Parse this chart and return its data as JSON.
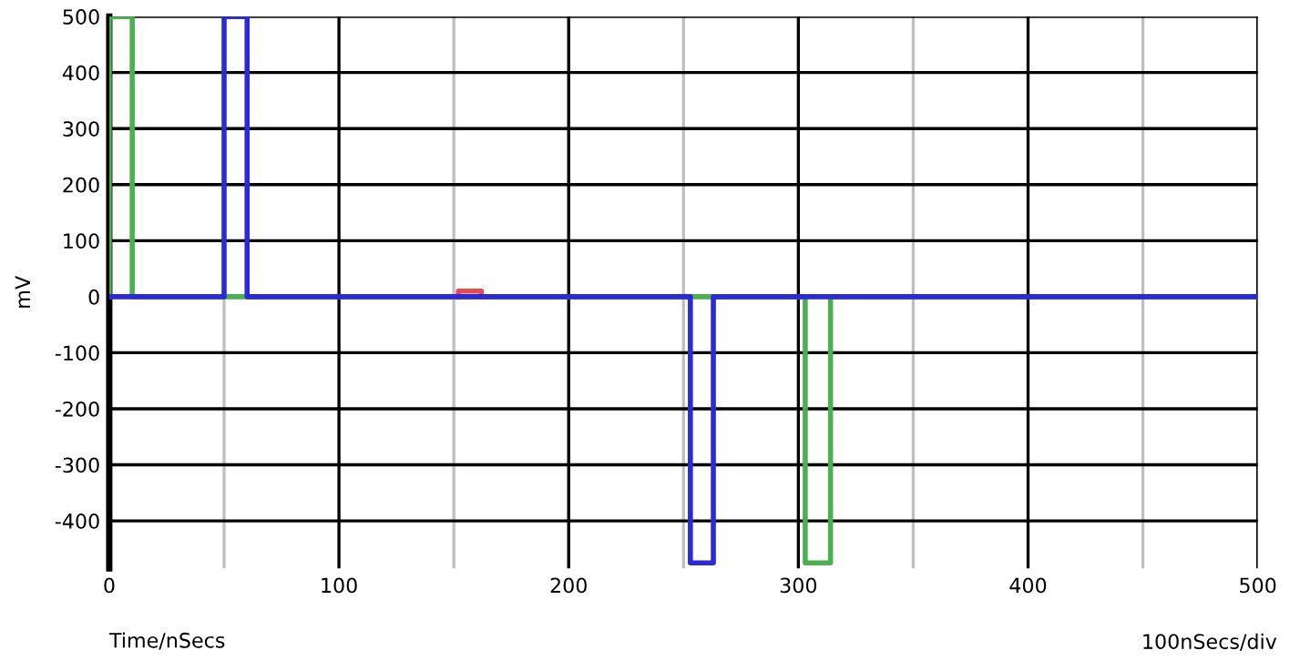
{
  "chart_data": {
    "type": "line",
    "xlabel": "Time/nSecs",
    "ylabel": "mV",
    "annotations": [
      "100nSecs/div"
    ],
    "xlim": [
      0,
      500
    ],
    "ylim": [
      -485,
      500
    ],
    "xticks": [
      0,
      {
        "value": 50,
        "label": null
      },
      100,
      {
        "value": 150,
        "label": null
      },
      200,
      {
        "value": 250,
        "label": null
      },
      300,
      {
        "value": 350,
        "label": null
      },
      400,
      {
        "value": 450,
        "label": null
      },
      500
    ],
    "yticks": [
      500,
      400,
      300,
      200,
      100,
      0,
      -100,
      -200,
      -300,
      -400
    ],
    "grid": true,
    "line_style": "solid",
    "marker": "none",
    "series": [
      {
        "color": "#4caf50",
        "x": [
          0,
          0,
          10,
          10,
          303,
          303,
          314,
          314,
          500
        ],
        "values": [
          0,
          500,
          500,
          0,
          0,
          -475,
          -475,
          0,
          0
        ]
      },
      {
        "color": "#e84a4a",
        "x": [
          152,
          152,
          162,
          162
        ],
        "values": [
          0,
          10,
          10,
          0
        ]
      },
      {
        "color": "#2a2ad8",
        "x": [
          0,
          50,
          50,
          60,
          60,
          253,
          253,
          263,
          263,
          500
        ],
        "values": [
          0,
          0,
          500,
          500,
          0,
          0,
          -475,
          -475,
          0,
          0
        ]
      }
    ]
  }
}
